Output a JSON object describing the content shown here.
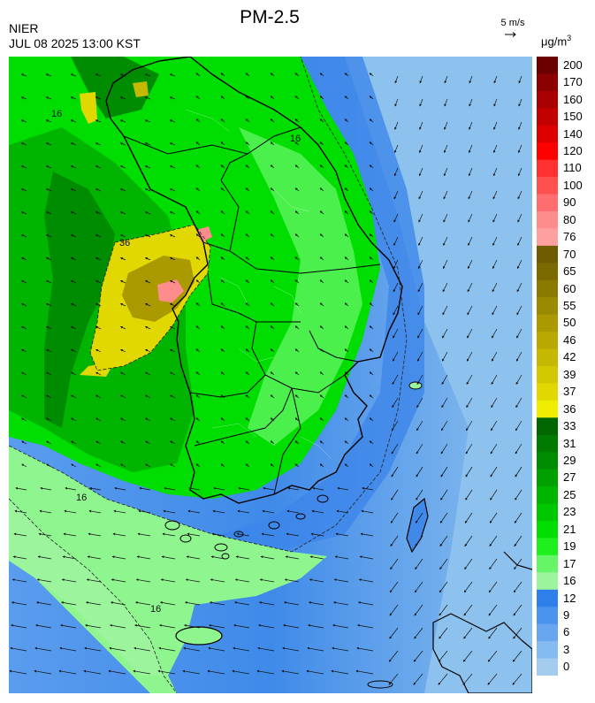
{
  "header": {
    "agency": "NIER",
    "timestamp": "JUL 08 2025 13:00 KST",
    "title": "PM-2.5",
    "wind_reference": "5 m/s",
    "unit_base": "μg/m",
    "unit_exp": "3"
  },
  "map": {
    "contour_labels": [
      "16",
      "16",
      "16",
      "16",
      "36"
    ]
  },
  "legend": {
    "levels": [
      {
        "label": "200",
        "color": "#6b0000"
      },
      {
        "label": "170",
        "color": "#8b0000"
      },
      {
        "label": "160",
        "color": "#a80000"
      },
      {
        "label": "150",
        "color": "#c20000"
      },
      {
        "label": "140",
        "color": "#dd0000"
      },
      {
        "label": "120",
        "color": "#ff0000"
      },
      {
        "label": "110",
        "color": "#ff3030"
      },
      {
        "label": "100",
        "color": "#ff5050"
      },
      {
        "label": "90",
        "color": "#ff6e6e"
      },
      {
        "label": "80",
        "color": "#ff8c8c"
      },
      {
        "label": "76",
        "color": "#ffa0a0"
      },
      {
        "label": "70",
        "color": "#6e5c00"
      },
      {
        "label": "65",
        "color": "#7a6a00"
      },
      {
        "label": "60",
        "color": "#8a7a00"
      },
      {
        "label": "55",
        "color": "#9a8a00"
      },
      {
        "label": "50",
        "color": "#aa9a00"
      },
      {
        "label": "46",
        "color": "#b8a800"
      },
      {
        "label": "42",
        "color": "#c4b800"
      },
      {
        "label": "39",
        "color": "#d2c800"
      },
      {
        "label": "37",
        "color": "#e0d800"
      },
      {
        "label": "36",
        "color": "#f0ee00"
      },
      {
        "label": "33",
        "color": "#006600"
      },
      {
        "label": "31",
        "color": "#007a00"
      },
      {
        "label": "29",
        "color": "#008c00"
      },
      {
        "label": "27",
        "color": "#00a000"
      },
      {
        "label": "25",
        "color": "#00b400"
      },
      {
        "label": "23",
        "color": "#00c800"
      },
      {
        "label": "21",
        "color": "#00dd00"
      },
      {
        "label": "19",
        "color": "#1ef01e"
      },
      {
        "label": "17",
        "color": "#66f566"
      },
      {
        "label": "16",
        "color": "#9cf59c"
      },
      {
        "label": "12",
        "color": "#2f7fea"
      },
      {
        "label": "9",
        "color": "#4a93ee"
      },
      {
        "label": "6",
        "color": "#68a7f0"
      },
      {
        "label": "3",
        "color": "#85bbf0"
      },
      {
        "label": "0",
        "color": "#a2cbee"
      }
    ]
  }
}
